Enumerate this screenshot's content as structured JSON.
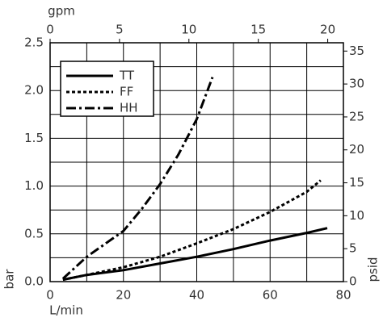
{
  "chart_data": {
    "type": "line",
    "x_label": "L/min",
    "y_label": "bar",
    "x2_label": "gpm",
    "y2_label": "psid",
    "xlim": [
      0,
      80
    ],
    "xticks": [
      0,
      20,
      40,
      60,
      80
    ],
    "x_minor_ticks": [
      10,
      30,
      50,
      70
    ],
    "ylim": [
      0,
      2.5
    ],
    "yticks": [
      {
        "value": 0,
        "label": "0.0"
      },
      {
        "value": 0.5,
        "label": "0.5"
      },
      {
        "value": 1,
        "label": "1.0"
      },
      {
        "value": 1.5,
        "label": "1.5"
      },
      {
        "value": 2,
        "label": "2.0"
      },
      {
        "value": 2.5,
        "label": "2.5"
      }
    ],
    "y_minor_ticks": [
      0.25,
      0.75,
      1.25,
      1.75,
      2.25
    ],
    "x2lim": [
      0,
      21.13
    ],
    "x2ticks": [
      0,
      5,
      10,
      15,
      20
    ],
    "y2lim": [
      0,
      36.26
    ],
    "y2ticks": [
      0,
      5,
      10,
      15,
      20,
      25,
      30,
      35
    ],
    "grid": true,
    "legend": "upper left",
    "series": [
      {
        "name": "TT",
        "color": "#000000",
        "dash": "solid",
        "x": [
          3.5,
          10,
          20,
          30,
          40,
          50,
          60,
          70,
          75.6
        ],
        "values": [
          0.02,
          0.07,
          0.12,
          0.19,
          0.26,
          0.34,
          0.43,
          0.51,
          0.56
        ]
      },
      {
        "name": "FF",
        "color": "#000000",
        "dash": "dotted",
        "x": [
          3.5,
          10,
          20,
          30,
          40,
          50,
          60,
          70,
          73.8
        ],
        "values": [
          0.02,
          0.07,
          0.15,
          0.26,
          0.4,
          0.55,
          0.73,
          0.94,
          1.06
        ]
      },
      {
        "name": "HH",
        "color": "#000000",
        "dash": "dashdot",
        "x": [
          3.5,
          10,
          20,
          25,
          30,
          35,
          40,
          44.3
        ],
        "values": [
          0.03,
          0.26,
          0.53,
          0.76,
          1.02,
          1.33,
          1.7,
          2.14
        ]
      }
    ]
  }
}
